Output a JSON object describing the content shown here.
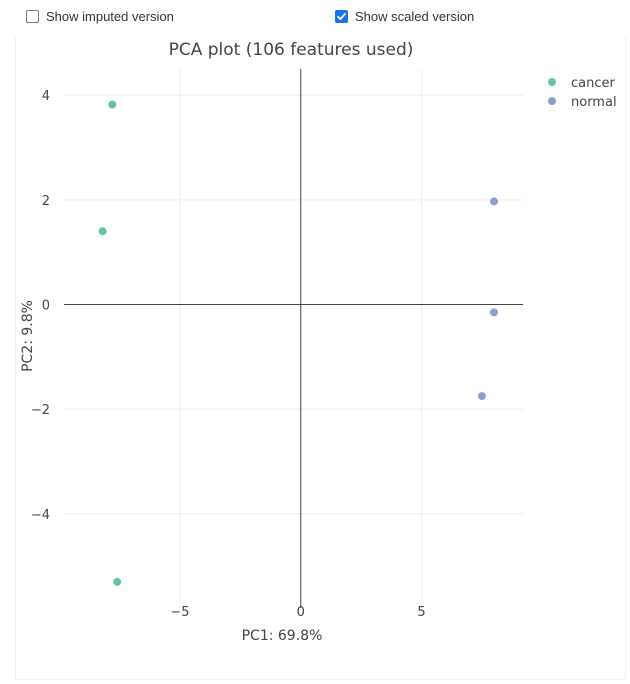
{
  "controls": {
    "imputed": {
      "label": "Show imputed version",
      "checked": false
    },
    "scaled": {
      "label": "Show scaled version",
      "checked": true
    }
  },
  "colors": {
    "cancer": "#66c2a5",
    "normal": "#8da0cb",
    "axis_line": "#444444",
    "grid": "#eeeeee"
  },
  "chart_data": {
    "type": "scatter",
    "title": "PCA plot (106 features used)",
    "xlabel": "PC1: 69.8%",
    "ylabel": "PC2: 9.8%",
    "xlim": [
      -9.8,
      9.2
    ],
    "ylim": [
      -5.8,
      4.5
    ],
    "xticks": [
      -5,
      0,
      5
    ],
    "xtick_labels": [
      "−5",
      "0",
      "5"
    ],
    "yticks": [
      4,
      2,
      0,
      -2,
      -4
    ],
    "ytick_labels": [
      "4",
      "2",
      "0",
      "−2",
      "−4"
    ],
    "grid": true,
    "legend_position": "top-right",
    "series": [
      {
        "name": "cancer",
        "color": "#66c2a5",
        "points": [
          [
            -7.8,
            3.82
          ],
          [
            -8.2,
            1.4
          ],
          [
            -7.6,
            -5.3
          ]
        ]
      },
      {
        "name": "normal",
        "color": "#8da0cb",
        "points": [
          [
            8.0,
            1.97
          ],
          [
            8.0,
            -0.15
          ],
          [
            7.5,
            -1.75
          ]
        ]
      }
    ]
  }
}
